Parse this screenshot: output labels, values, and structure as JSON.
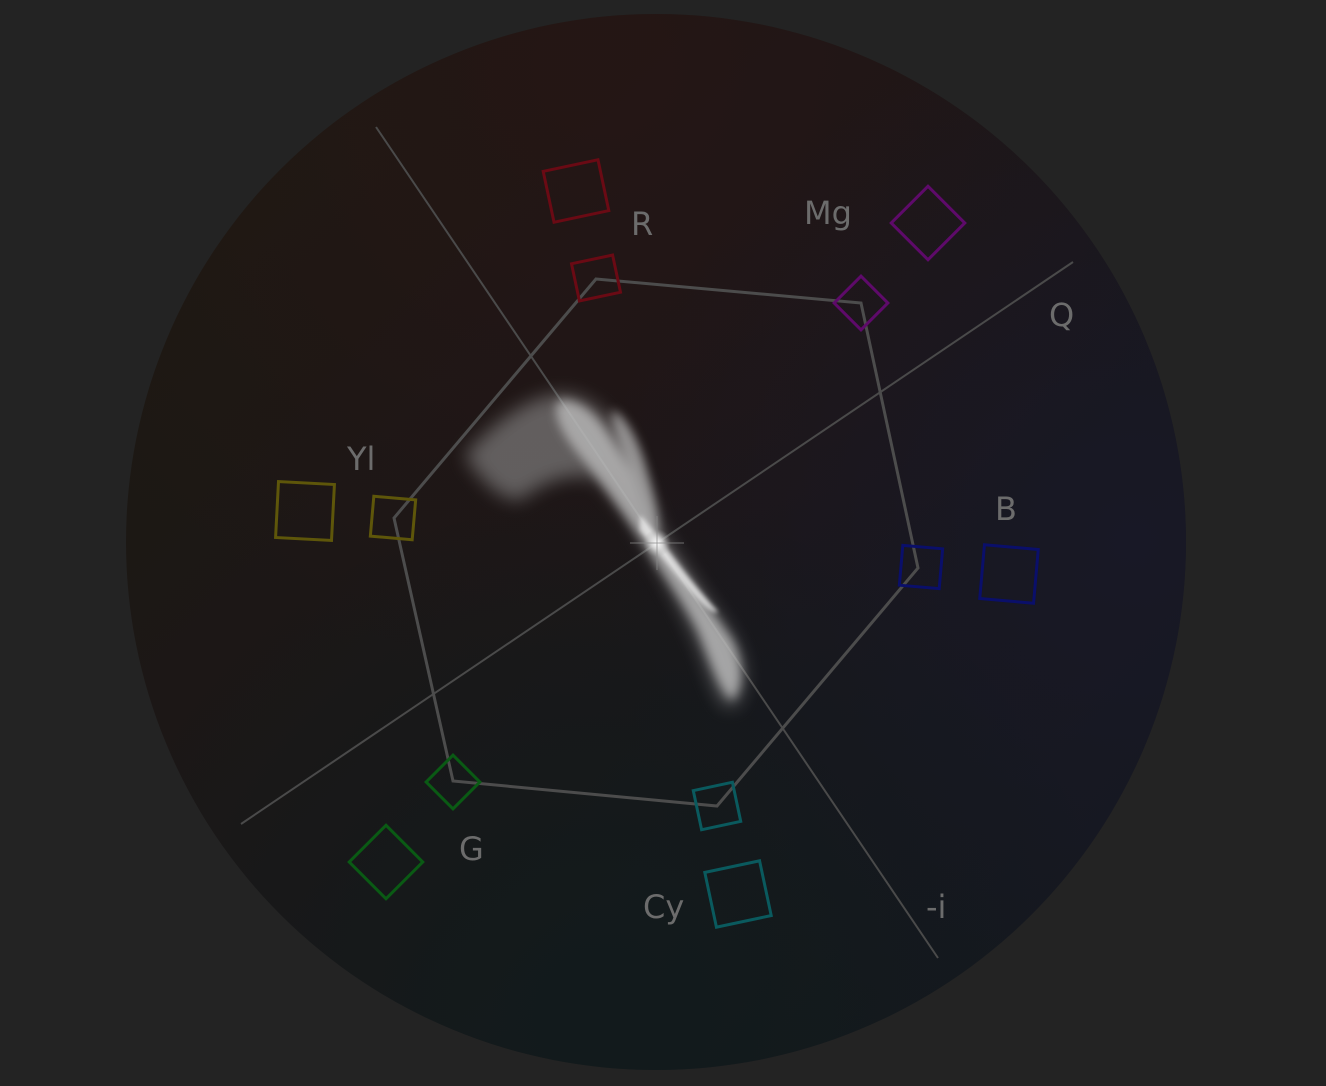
{
  "vectorscope": {
    "labels": {
      "red": "R",
      "magenta": "Mg",
      "q_axis": "Q",
      "yellow": "Yl",
      "blue": "B",
      "green": "G",
      "cyan": "Cy",
      "neg_i_axis": "-i"
    },
    "target_colors": {
      "red": "#6a0a14",
      "magenta": "#5e0a6a",
      "blue": "#0a0f6a",
      "cyan": "#0a5a5e",
      "green": "#0a5a14",
      "yellow": "#5e560a"
    },
    "graticule_color": "#4a4a4a",
    "background_color": "#232323"
  }
}
